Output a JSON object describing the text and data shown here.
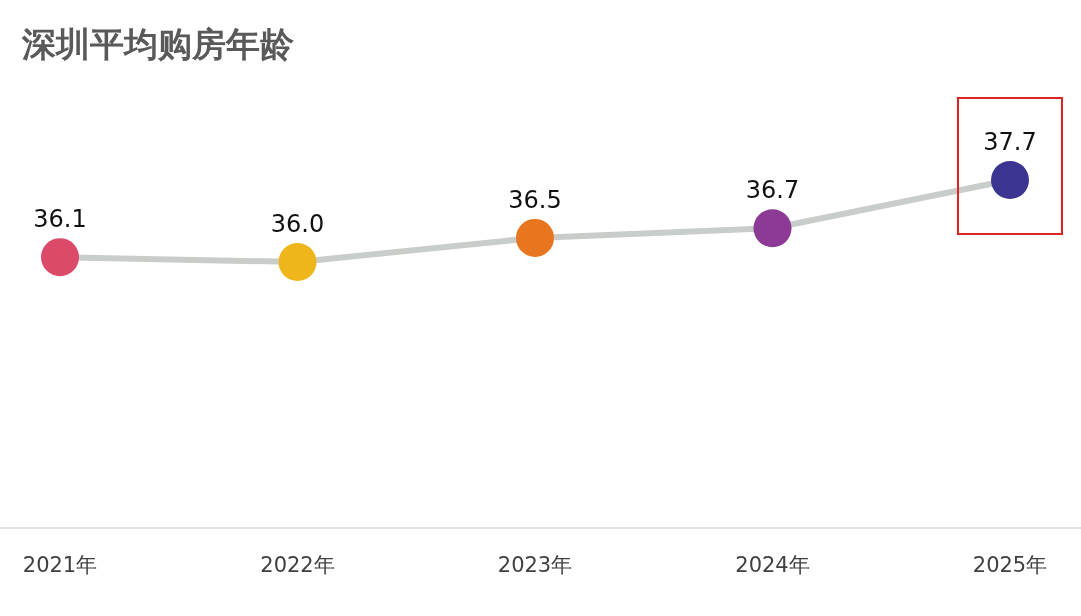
{
  "chart_data": {
    "type": "line",
    "title": "深圳平均购房年龄",
    "categories": [
      "2021年",
      "2022年",
      "2023年",
      "2024年",
      "2025年"
    ],
    "series": [
      {
        "color": "#c8cdca",
        "colors": [
          "#dc4a6a",
          "#efb61c",
          "#e8761e",
          "#8c3a96",
          "#3b3591"
        ],
        "values": [
          36.1,
          36.0,
          36.5,
          36.7,
          37.7
        ],
        "value_labels": [
          "36.1",
          "36.0",
          "36.5",
          "36.7",
          "37.7"
        ]
      }
    ],
    "marker": "circle"
  }
}
